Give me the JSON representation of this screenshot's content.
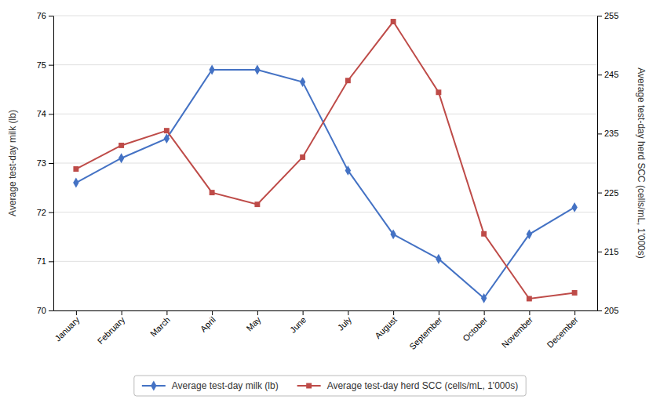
{
  "chart_data": {
    "type": "line",
    "categories": [
      "January",
      "February",
      "March",
      "April",
      "May",
      "June",
      "July",
      "August",
      "September",
      "October",
      "November",
      "December"
    ],
    "series": [
      {
        "name": "Average test-day milk (lb)",
        "color": "#4472C4",
        "marker": "diamond",
        "values": [
          72.6,
          73.1,
          73.5,
          74.9,
          74.9,
          74.65,
          72.85,
          71.55,
          71.05,
          70.25,
          71.55,
          72.1
        ]
      },
      {
        "name": "Average test-day herd SCC (cells/mL, 1'000s)",
        "color": "#BE4B48",
        "marker": "square",
        "axis": "y2",
        "values": [
          229,
          233,
          235.5,
          225,
          223,
          231,
          244,
          254,
          242,
          218,
          207,
          208
        ]
      }
    ],
    "y_label": "Average test-day milk (lb)",
    "y2_label": "Average test-day herd SCC (cells/mL, 1'000s)",
    "ylim": [
      70,
      76
    ],
    "yticks": [
      70,
      71,
      72,
      73,
      74,
      75,
      76
    ],
    "y2lim": [
      205,
      255
    ],
    "y2ticks": [
      205,
      215,
      225,
      235,
      245,
      255
    ],
    "grid": true,
    "legend": "bottom"
  }
}
